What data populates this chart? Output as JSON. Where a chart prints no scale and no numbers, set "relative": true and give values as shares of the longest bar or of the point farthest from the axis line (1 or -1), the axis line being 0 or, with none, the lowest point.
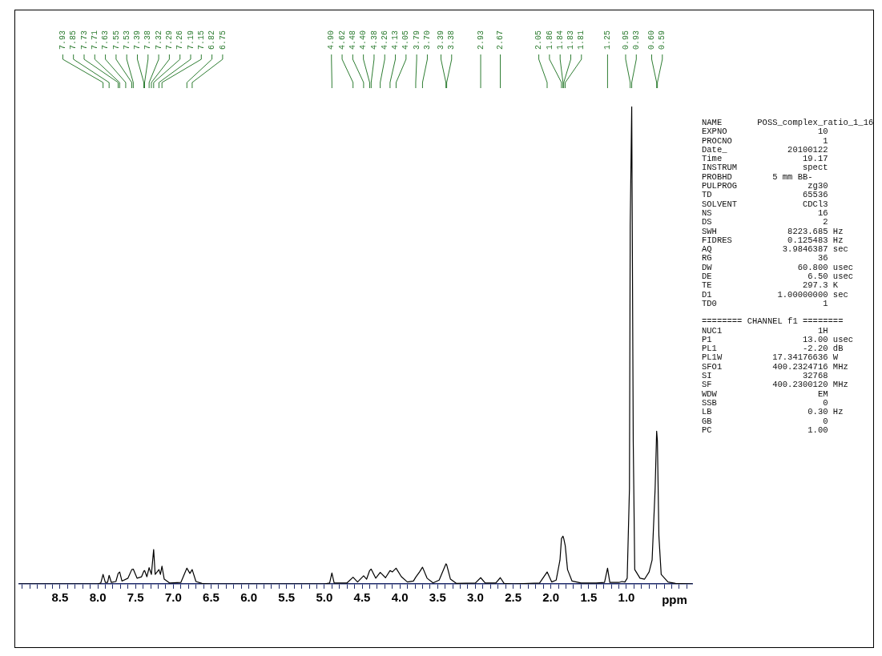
{
  "chart_data": {
    "type": "line",
    "relative": true,
    "tick_labels": "x",
    "xlabel": "ppm",
    "xlim": [
      9.04,
      0.13
    ],
    "xticks": [
      {
        "value": 9,
        "label": null
      },
      {
        "value": 8.9,
        "label": null
      },
      {
        "value": 8.8,
        "label": null
      },
      {
        "value": 8.7,
        "label": null
      },
      {
        "value": 8.6,
        "label": null
      },
      8.5,
      {
        "value": 8.4,
        "label": null
      },
      {
        "value": 8.3,
        "label": null
      },
      {
        "value": 8.2,
        "label": null
      },
      {
        "value": 8.1,
        "label": null
      },
      {
        "value": 8,
        "label": "8.0"
      },
      {
        "value": 7.9,
        "label": null
      },
      {
        "value": 7.8,
        "label": null
      },
      {
        "value": 7.7,
        "label": null
      },
      {
        "value": 7.6,
        "label": null
      },
      7.5,
      {
        "value": 7.4,
        "label": null
      },
      {
        "value": 7.3,
        "label": null
      },
      {
        "value": 7.2,
        "label": null
      },
      {
        "value": 7.1,
        "label": null
      },
      {
        "value": 7,
        "label": "7.0"
      },
      {
        "value": 6.9,
        "label": null
      },
      {
        "value": 6.8,
        "label": null
      },
      {
        "value": 6.7,
        "label": null
      },
      {
        "value": 6.6,
        "label": null
      },
      6.5,
      {
        "value": 6.4,
        "label": null
      },
      {
        "value": 6.3,
        "label": null
      },
      {
        "value": 6.2,
        "label": null
      },
      {
        "value": 6.1,
        "label": null
      },
      {
        "value": 6,
        "label": "6.0"
      },
      {
        "value": 5.9,
        "label": null
      },
      {
        "value": 5.8,
        "label": null
      },
      {
        "value": 5.7,
        "label": null
      },
      {
        "value": 5.6,
        "label": null
      },
      5.5,
      {
        "value": 5.4,
        "label": null
      },
      {
        "value": 5.3,
        "label": null
      },
      {
        "value": 5.2,
        "label": null
      },
      {
        "value": 5.1,
        "label": null
      },
      {
        "value": 5,
        "label": "5.0"
      },
      {
        "value": 4.9,
        "label": null
      },
      {
        "value": 4.8,
        "label": null
      },
      {
        "value": 4.7,
        "label": null
      },
      {
        "value": 4.6,
        "label": null
      },
      4.5,
      {
        "value": 4.4,
        "label": null
      },
      {
        "value": 4.3,
        "label": null
      },
      {
        "value": 4.2,
        "label": null
      },
      {
        "value": 4.1,
        "label": null
      },
      {
        "value": 4,
        "label": "4.0"
      },
      {
        "value": 3.9,
        "label": null
      },
      {
        "value": 3.8,
        "label": null
      },
      {
        "value": 3.7,
        "label": null
      },
      {
        "value": 3.6,
        "label": null
      },
      3.5,
      {
        "value": 3.4,
        "label": null
      },
      {
        "value": 3.3,
        "label": null
      },
      {
        "value": 3.2,
        "label": null
      },
      {
        "value": 3.1,
        "label": null
      },
      {
        "value": 3,
        "label": "3.0"
      },
      {
        "value": 2.9,
        "label": null
      },
      {
        "value": 2.8,
        "label": null
      },
      {
        "value": 2.7,
        "label": null
      },
      {
        "value": 2.6,
        "label": null
      },
      2.5,
      {
        "value": 2.4,
        "label": null
      },
      {
        "value": 2.3,
        "label": null
      },
      {
        "value": 2.2,
        "label": null
      },
      {
        "value": 2.1,
        "label": null
      },
      {
        "value": 2,
        "label": "2.0"
      },
      {
        "value": 1.9,
        "label": null
      },
      {
        "value": 1.8,
        "label": null
      },
      {
        "value": 1.7,
        "label": null
      },
      {
        "value": 1.6,
        "label": null
      },
      1.5,
      {
        "value": 1.4,
        "label": null
      },
      {
        "value": 1.3,
        "label": null
      },
      {
        "value": 1.2,
        "label": null
      },
      {
        "value": 1.1,
        "label": null
      },
      {
        "value": 1,
        "label": "1.0"
      },
      {
        "value": 0.9,
        "label": null
      },
      {
        "value": 0.8,
        "label": null
      },
      {
        "value": 0.7,
        "label": null
      },
      {
        "value": 0.6,
        "label": null
      },
      {
        "value": 0.5,
        "label": null
      },
      {
        "value": 0.4,
        "label": null
      },
      {
        "value": 0.3,
        "label": null
      },
      {
        "value": 0.2,
        "label": null
      }
    ],
    "x": [
      9.04,
      8.0,
      7.96,
      7.93,
      7.9,
      7.87,
      7.85,
      7.82,
      7.76,
      7.73,
      7.71,
      7.68,
      7.6,
      7.55,
      7.53,
      7.48,
      7.42,
      7.39,
      7.38,
      7.35,
      7.32,
      7.29,
      7.26,
      7.24,
      7.19,
      7.17,
      7.15,
      7.12,
      7.05,
      6.9,
      6.82,
      6.78,
      6.75,
      6.7,
      6.62,
      6.5,
      5.0,
      4.93,
      4.9,
      4.87,
      4.7,
      4.62,
      4.56,
      4.48,
      4.44,
      4.4,
      4.38,
      4.32,
      4.26,
      4.19,
      4.13,
      4.1,
      4.05,
      3.98,
      3.9,
      3.82,
      3.79,
      3.74,
      3.7,
      3.64,
      3.56,
      3.48,
      3.39,
      3.38,
      3.33,
      3.25,
      3.0,
      2.93,
      2.87,
      2.73,
      2.67,
      2.62,
      2.5,
      2.15,
      2.05,
      1.99,
      1.93,
      1.88,
      1.86,
      1.84,
      1.83,
      1.81,
      1.78,
      1.72,
      1.6,
      1.4,
      1.29,
      1.25,
      1.22,
      1.1,
      1.06,
      1.02,
      0.99,
      0.96,
      0.95,
      0.93,
      0.91,
      0.89,
      0.82,
      0.76,
      0.7,
      0.66,
      0.62,
      0.6,
      0.59,
      0.57,
      0.54,
      0.45,
      0.35,
      0.13
    ],
    "series": [
      {
        "color": "#000000",
        "values": [
          0,
          0,
          0.002,
          0.02,
          0.003,
          0.003,
          0.018,
          0.003,
          0.005,
          0.022,
          0.025,
          0.006,
          0.012,
          0.03,
          0.031,
          0.012,
          0.015,
          0.027,
          0.028,
          0.015,
          0.034,
          0.02,
          0.072,
          0.02,
          0.03,
          0.02,
          0.037,
          0.01,
          0.002,
          0.003,
          0.033,
          0.022,
          0.03,
          0.005,
          0.001,
          0,
          0,
          0.002,
          0.023,
          0.002,
          0.002,
          0.014,
          0.004,
          0.017,
          0.01,
          0.028,
          0.031,
          0.012,
          0.024,
          0.013,
          0.028,
          0.025,
          0.033,
          0.015,
          0.004,
          0.006,
          0.014,
          0.025,
          0.035,
          0.012,
          0.002,
          0.008,
          0.042,
          0.04,
          0.01,
          0.001,
          0.002,
          0.013,
          0.002,
          0.002,
          0.013,
          0.001,
          0,
          0.002,
          0.025,
          0.004,
          0.008,
          0.05,
          0.095,
          0.1,
          0.095,
          0.08,
          0.03,
          0.006,
          0.002,
          0.002,
          0.003,
          0.033,
          0.003,
          0.003,
          0.005,
          0.004,
          0.012,
          0.2,
          0.75,
          1,
          0.3,
          0.03,
          0.012,
          0.01,
          0.025,
          0.05,
          0.2,
          0.32,
          0.3,
          0.1,
          0.02,
          0.004,
          0.001,
          0
        ]
      }
    ],
    "annotations": [
      {
        "text": "7.93",
        "x": 7.93
      },
      {
        "text": "7.85",
        "x": 7.85
      },
      {
        "text": "7.73",
        "x": 7.73
      },
      {
        "text": "7.71",
        "x": 7.71
      },
      {
        "text": "7.63",
        "x": 7.63
      },
      {
        "text": "7.55",
        "x": 7.55
      },
      {
        "text": "7.53",
        "x": 7.53
      },
      {
        "text": "7.39",
        "x": 7.39
      },
      {
        "text": "7.38",
        "x": 7.38
      },
      {
        "text": "7.32",
        "x": 7.32
      },
      {
        "text": "7.29",
        "x": 7.29
      },
      {
        "text": "7.26",
        "x": 7.26
      },
      {
        "text": "7.19",
        "x": 7.19
      },
      {
        "text": "7.15",
        "x": 7.15
      },
      {
        "text": "6.82",
        "x": 6.82
      },
      {
        "text": "6.75",
        "x": 6.75
      },
      {
        "text": "4.90",
        "x": 4.9
      },
      {
        "text": "4.62",
        "x": 4.62
      },
      {
        "text": "4.48",
        "x": 4.48
      },
      {
        "text": "4.40",
        "x": 4.4
      },
      {
        "text": "4.38",
        "x": 4.38
      },
      {
        "text": "4.26",
        "x": 4.26
      },
      {
        "text": "4.13",
        "x": 4.13
      },
      {
        "text": "4.05",
        "x": 4.05
      },
      {
        "text": "3.79",
        "x": 3.79
      },
      {
        "text": "3.70",
        "x": 3.7
      },
      {
        "text": "3.39",
        "x": 3.39
      },
      {
        "text": "3.38",
        "x": 3.38
      },
      {
        "text": "2.93",
        "x": 2.93
      },
      {
        "text": "2.67",
        "x": 2.67
      },
      {
        "text": "2.05",
        "x": 2.05
      },
      {
        "text": "1.86",
        "x": 1.86
      },
      {
        "text": "1.84",
        "x": 1.84
      },
      {
        "text": "1.83",
        "x": 1.83
      },
      {
        "text": "1.81",
        "x": 1.81
      },
      {
        "text": "1.25",
        "x": 1.25
      },
      {
        "text": "0.95",
        "x": 0.95
      },
      {
        "text": "0.93",
        "x": 0.93
      },
      {
        "text": "0.60",
        "x": 0.6
      },
      {
        "text": "0.59",
        "x": 0.59
      },
      "NAME       POSS_complex_ratio_1_16",
      "EXPNO                  10",
      "PROCNO                  1",
      "Date_            20100122",
      "Time                19.17",
      "INSTRUM             spect",
      "PROBHD        5 mm BB-",
      "PULPROG              zg30",
      "TD                  65536",
      "SOLVENT             CDCl3",
      "NS                     16",
      "DS                      2",
      "SWH              8223.685 Hz",
      "FIDRES           0.125483 Hz",
      "AQ              3.9846387 sec",
      "RG                     36",
      "DW                 60.800 usec",
      "DE                   6.50 usec",
      "TE                  297.3 K",
      "D1             1.00000000 sec",
      "TD0                     1",
      "======== CHANNEL f1 ========",
      "NUC1                   1H",
      "P1                  13.00 usec",
      "PL1                 -2.20 dB",
      "PL1W          17.34176636 W",
      "SFO1          400.2324716 MHz",
      "SI                  32768",
      "SF            400.2300120 MHz",
      "WDW                    EM",
      "SSB                     0",
      "LB                   0.30 Hz",
      "GB                      0",
      "PC                   1.00"
    ]
  }
}
